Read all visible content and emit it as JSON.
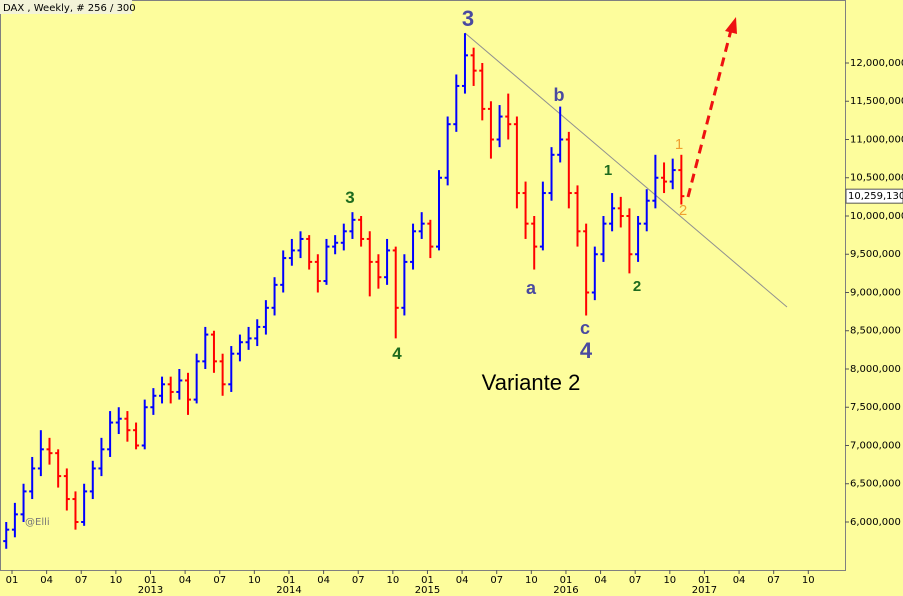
{
  "chart_data": {
    "type": "ohlc",
    "title": "DAX , Weekly, # 256 / 300",
    "up_color": "#0000ff",
    "down_color": "#ff0000",
    "xlim": [
      -1.04,
      72.18
    ],
    "ylim": [
      5372500,
      12823500
    ],
    "x": [
      -0.5,
      0.25,
      1,
      1.75,
      2.5,
      3.25,
      4,
      4.75,
      5.5,
      6.25,
      7,
      7.75,
      8.5,
      9.25,
      10,
      10.75,
      11.5,
      12.25,
      13,
      13.75,
      14.5,
      15.25,
      16,
      16.75,
      17.5,
      18.25,
      19,
      19.75,
      20.5,
      21.25,
      22,
      22.75,
      23.5,
      24.25,
      25,
      25.75,
      26.5,
      27.25,
      28,
      28.75,
      29.5,
      30.25,
      31,
      31.75,
      32.5,
      33.25,
      34,
      34.75,
      35.5,
      36.25,
      37,
      37.75,
      38.5,
      39.25,
      40,
      40.75,
      41.5,
      42.25,
      43,
      43.75,
      44.5,
      45.25,
      46,
      46.75,
      47.5,
      48.25,
      49,
      49.75,
      50.5,
      51.25,
      52,
      52.75,
      53.5,
      54.25,
      55,
      55.75,
      56.5,
      57.25,
      58
    ],
    "open": [
      5750000,
      5900000,
      6100000,
      6400000,
      6700000,
      6950000,
      6900000,
      6600000,
      6300000,
      6000000,
      6400000,
      6700000,
      6950000,
      7300000,
      7350000,
      7200000,
      7000000,
      7500000,
      7650000,
      7800000,
      7700000,
      7850000,
      7600000,
      8100000,
      8450000,
      8100000,
      7800000,
      8200000,
      8350000,
      8400000,
      8550000,
      8800000,
      9100000,
      9450000,
      9550000,
      9700000,
      9400000,
      9150000,
      9600000,
      9650000,
      9800000,
      9950000,
      9700000,
      9400000,
      9200000,
      9550000,
      8800000,
      9400000,
      9800000,
      9900000,
      9600000,
      10500000,
      11200000,
      11700000,
      12100000,
      11900000,
      11400000,
      11000000,
      11300000,
      11200000,
      10300000,
      9900000,
      9600000,
      10300000,
      10800000,
      11000000,
      10300000,
      9800000,
      9000000,
      9500000,
      9900000,
      10100000,
      10000000,
      9500000,
      9900000,
      10200000,
      10500000,
      10450000,
      10600000
    ],
    "high": [
      6000000,
      6250000,
      6500000,
      6850000,
      7200000,
      7100000,
      6950000,
      6700000,
      6400000,
      6500000,
      6800000,
      7100000,
      7450000,
      7500000,
      7450000,
      7300000,
      7600000,
      7750000,
      7900000,
      7900000,
      8000000,
      7950000,
      8200000,
      8550000,
      8500000,
      8200000,
      8300000,
      8450000,
      8550000,
      8650000,
      8900000,
      9200000,
      9550000,
      9700000,
      9800000,
      9750000,
      9500000,
      9700000,
      9750000,
      9900000,
      10050000,
      10000000,
      9800000,
      9500000,
      9700000,
      9600000,
      9500000,
      9900000,
      10050000,
      9950000,
      10600000,
      11300000,
      11850000,
      12390000,
      12200000,
      12000000,
      11500000,
      11450000,
      11600000,
      11300000,
      10450000,
      10000000,
      10450000,
      10900000,
      11430000,
      11100000,
      10400000,
      9900000,
      9600000,
      10000000,
      10300000,
      10250000,
      10100000,
      10000000,
      10350000,
      10800000,
      10700000,
      10750000,
      10800000
    ],
    "low": [
      5650000,
      5800000,
      6000000,
      6300000,
      6600000,
      6750000,
      6450000,
      6150000,
      5900000,
      5950000,
      6300000,
      6600000,
      6850000,
      7150000,
      7050000,
      6950000,
      6950000,
      7400000,
      7550000,
      7550000,
      7600000,
      7400000,
      7550000,
      8000000,
      7950000,
      7650000,
      7700000,
      8100000,
      8250000,
      8300000,
      8450000,
      8700000,
      9000000,
      9350000,
      9450000,
      9300000,
      9000000,
      9100000,
      9500000,
      9550000,
      9700000,
      9600000,
      8950000,
      9050000,
      9100000,
      8400000,
      8700000,
      9300000,
      9700000,
      9450000,
      9550000,
      10400000,
      11100000,
      11600000,
      11700000,
      11250000,
      10750000,
      10900000,
      11000000,
      10100000,
      9700000,
      9300000,
      9550000,
      10200000,
      10700000,
      10100000,
      9600000,
      8700000,
      8900000,
      9400000,
      9800000,
      9850000,
      9250000,
      9400000,
      9800000,
      10100000,
      10300000,
      10350000,
      10150000
    ],
    "close": [
      5900000,
      6100000,
      6400000,
      6700000,
      6950000,
      6900000,
      6600000,
      6300000,
      6000000,
      6400000,
      6700000,
      6950000,
      7300000,
      7350000,
      7200000,
      7000000,
      7500000,
      7650000,
      7800000,
      7700000,
      7850000,
      7600000,
      8100000,
      8450000,
      8100000,
      7800000,
      8200000,
      8350000,
      8400000,
      8550000,
      8800000,
      9100000,
      9450000,
      9550000,
      9700000,
      9400000,
      9150000,
      9600000,
      9650000,
      9800000,
      9950000,
      9700000,
      9400000,
      9200000,
      9550000,
      8800000,
      9400000,
      9800000,
      9900000,
      9600000,
      10500000,
      11200000,
      11700000,
      12100000,
      11900000,
      11400000,
      11000000,
      11300000,
      11200000,
      10300000,
      9900000,
      9600000,
      10300000,
      10800000,
      11000000,
      10300000,
      9800000,
      9000000,
      9500000,
      9900000,
      10100000,
      10000000,
      9500000,
      9900000,
      10200000,
      10500000,
      10450000,
      10600000,
      10259130
    ],
    "last_label": "10,259,130",
    "yticks": [
      {
        "value": 6000000,
        "label": "6,000,000"
      },
      {
        "value": 6500000,
        "label": "6,500,000"
      },
      {
        "value": 7000000,
        "label": "7,000,000"
      },
      {
        "value": 7500000,
        "label": "7,500,000"
      },
      {
        "value": 8000000,
        "label": "8,000,000"
      },
      {
        "value": 8500000,
        "label": "8,500,000"
      },
      {
        "value": 9000000,
        "label": "9,000,000"
      },
      {
        "value": 9500000,
        "label": "9,500,000"
      },
      {
        "value": 10000000,
        "label": "10,000,000"
      },
      {
        "value": 10500000,
        "label": "10,500,000"
      },
      {
        "value": 11000000,
        "label": "11,000,000"
      },
      {
        "value": 11500000,
        "label": "11,500,000"
      },
      {
        "value": 12000000,
        "label": "12,000,000"
      }
    ],
    "xticks": [
      {
        "value": 0,
        "label": "01"
      },
      {
        "value": 3,
        "label": "04"
      },
      {
        "value": 6,
        "label": "07"
      },
      {
        "value": 9,
        "label": "10"
      },
      {
        "value": 12,
        "label": "01"
      },
      {
        "value": 15,
        "label": "04"
      },
      {
        "value": 18,
        "label": "07"
      },
      {
        "value": 21,
        "label": "10"
      },
      {
        "value": 24,
        "label": "01"
      },
      {
        "value": 27,
        "label": "04"
      },
      {
        "value": 30,
        "label": "07"
      },
      {
        "value": 33,
        "label": "10"
      },
      {
        "value": 36,
        "label": "01"
      },
      {
        "value": 39,
        "label": "04"
      },
      {
        "value": 42,
        "label": "07"
      },
      {
        "value": 45,
        "label": "10"
      },
      {
        "value": 48,
        "label": "01"
      },
      {
        "value": 51,
        "label": "04"
      },
      {
        "value": 54,
        "label": "07"
      },
      {
        "value": 57,
        "label": "10"
      },
      {
        "value": 60,
        "label": "01"
      },
      {
        "value": 63,
        "label": "04"
      },
      {
        "value": 66,
        "label": "07"
      },
      {
        "value": 69,
        "label": "10"
      }
    ],
    "year_ticks": [
      {
        "value": 12,
        "label": "2013"
      },
      {
        "value": 24,
        "label": "2014"
      },
      {
        "value": 36,
        "label": "2015"
      },
      {
        "value": 48,
        "label": "2016"
      },
      {
        "value": 60,
        "label": "2017"
      }
    ],
    "annotations": [
      "3",
      "3",
      "4",
      "b",
      "a",
      "c",
      "4",
      "1",
      "2",
      "1",
      "2",
      "Variante 2",
      "@Elli"
    ]
  }
}
